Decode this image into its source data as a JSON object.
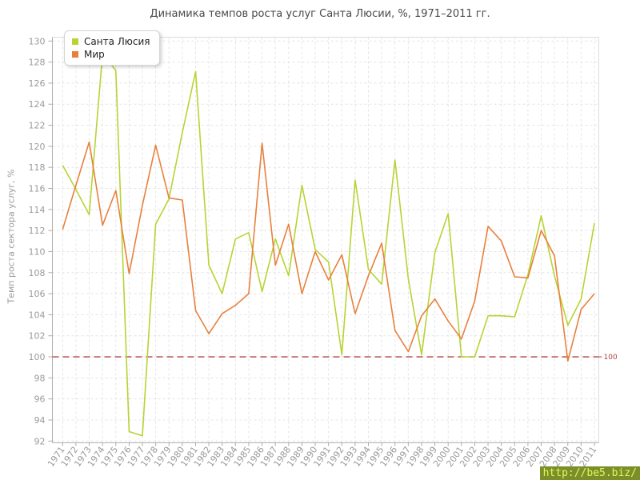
{
  "title": "Динамика темпов роста услуг Санта Люсии, %, 1971–2011 гг.",
  "y_axis_title": "Темп роста сектора услуг, %",
  "watermark": "http://be5.biz/",
  "legend": {
    "items": [
      {
        "label": "Санта Люсия",
        "color": "#b6d433"
      },
      {
        "label": "Мир",
        "color": "#e8803d"
      }
    ]
  },
  "reference_line": {
    "value": 100,
    "label": "100",
    "color": "#b04040"
  },
  "chart_data": {
    "type": "line",
    "title": "Динамика темпов роста услуг Санта Люсии, %, 1971–2011 гг.",
    "xlabel": "",
    "ylabel": "Темп роста сектора услуг, %",
    "ylim": [
      92,
      130
    ],
    "ytick_step": 2,
    "grid": true,
    "legend_position": "top-left",
    "x": [
      1971,
      1972,
      1973,
      1974,
      1975,
      1976,
      1977,
      1978,
      1979,
      1980,
      1981,
      1982,
      1983,
      1984,
      1985,
      1986,
      1987,
      1988,
      1989,
      1990,
      1991,
      1992,
      1993,
      1994,
      1995,
      1996,
      1997,
      1998,
      1999,
      2000,
      2001,
      2002,
      2003,
      2004,
      2005,
      2006,
      2007,
      2008,
      2009,
      2010,
      2011
    ],
    "series": [
      {
        "name": "Санта Люсия",
        "color": "#b6d433",
        "values": [
          118.2,
          115.9,
          113.5,
          128.8,
          127.2,
          92.9,
          92.5,
          112.6,
          115.0,
          121.3,
          127.1,
          108.7,
          106.0,
          111.2,
          111.8,
          106.2,
          111.2,
          107.7,
          116.3,
          110.2,
          109.0,
          100.2,
          116.8,
          108.3,
          106.9,
          118.7,
          107.4,
          100.2,
          109.9,
          113.6,
          100.0,
          100.0,
          103.9,
          103.9,
          103.8,
          107.8,
          113.4,
          107.7,
          103.0,
          105.5,
          112.7
        ]
      },
      {
        "name": "Мир",
        "color": "#e8803d",
        "values": [
          112.1,
          116.3,
          120.4,
          112.5,
          115.8,
          107.9,
          114.4,
          120.1,
          115.1,
          114.9,
          104.4,
          102.2,
          104.1,
          104.9,
          106.0,
          120.3,
          108.7,
          112.6,
          106.0,
          110.0,
          107.3,
          109.7,
          104.1,
          107.7,
          110.8,
          102.5,
          100.5,
          103.9,
          105.5,
          103.4,
          101.7,
          105.3,
          112.4,
          111.0,
          107.6,
          107.5,
          112.0,
          109.6,
          99.6,
          104.5,
          106.0
        ]
      }
    ]
  }
}
